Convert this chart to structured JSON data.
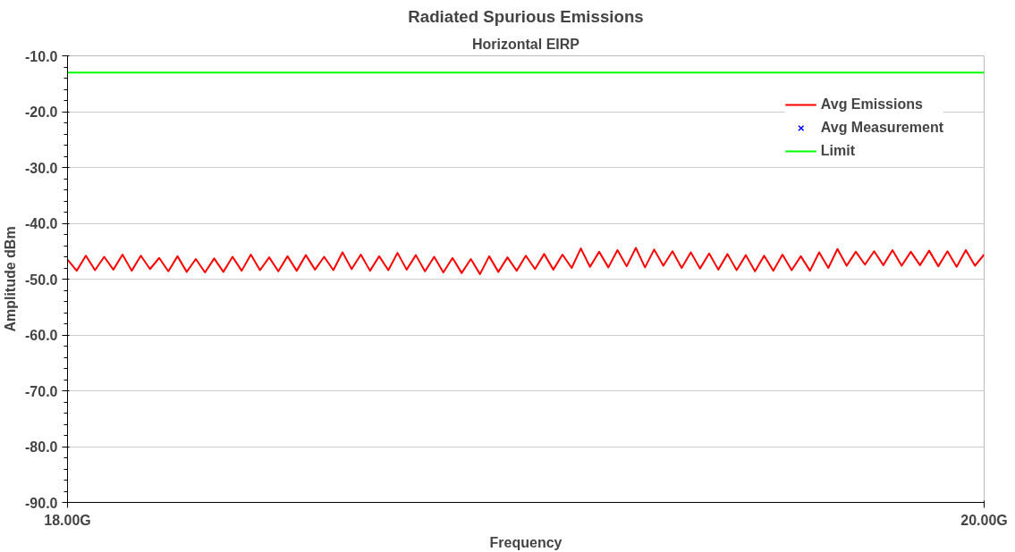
{
  "chart_data": {
    "type": "line",
    "title": "Radiated Spurious Emissions",
    "subtitle": "Horizontal EIRP",
    "xlabel": "Frequency",
    "ylabel": "Amplitude dBm",
    "xlim": [
      18,
      20
    ],
    "xticks": [
      {
        "value": 18,
        "label": "18.00G"
      },
      {
        "value": 20,
        "label": "20.00G"
      }
    ],
    "ylim": [
      -90,
      -10
    ],
    "yticks": [
      {
        "value": -90,
        "label": "-90.0"
      },
      {
        "value": -80,
        "label": "-80.0"
      },
      {
        "value": -70,
        "label": "-70.0"
      },
      {
        "value": -60,
        "label": "-60.0"
      },
      {
        "value": -50,
        "label": "-50.0"
      },
      {
        "value": -40,
        "label": "-40.0"
      },
      {
        "value": -30,
        "label": "-30.0"
      },
      {
        "value": -20,
        "label": "-20.0"
      },
      {
        "value": -10,
        "label": "-10.0"
      }
    ],
    "grid": "y",
    "legend": "top right",
    "series": [
      {
        "name": "Avg Emissions",
        "color": "#ff0000",
        "x": [
          18.0,
          18.02,
          18.04,
          18.06,
          18.08,
          18.1,
          18.12,
          18.14,
          18.16,
          18.18,
          18.2,
          18.22,
          18.24,
          18.26,
          18.28,
          18.3,
          18.32,
          18.34,
          18.36,
          18.38,
          18.4,
          18.42,
          18.44,
          18.46,
          18.48,
          18.5,
          18.52,
          18.54,
          18.56,
          18.58,
          18.6,
          18.62,
          18.64,
          18.66,
          18.68,
          18.7,
          18.72,
          18.74,
          18.76,
          18.78,
          18.8,
          18.82,
          18.84,
          18.86,
          18.88,
          18.9,
          18.92,
          18.94,
          18.96,
          18.98,
          19.0,
          19.02,
          19.04,
          19.06,
          19.08,
          19.1,
          19.12,
          19.14,
          19.16,
          19.18,
          19.2,
          19.22,
          19.24,
          19.26,
          19.28,
          19.3,
          19.32,
          19.34,
          19.36,
          19.38,
          19.4,
          19.42,
          19.44,
          19.46,
          19.48,
          19.5,
          19.52,
          19.54,
          19.56,
          19.58,
          19.6,
          19.62,
          19.64,
          19.66,
          19.68,
          19.7,
          19.72,
          19.74,
          19.76,
          19.78,
          19.8,
          19.82,
          19.84,
          19.86,
          19.88,
          19.9,
          19.92,
          19.94,
          19.96,
          19.98,
          20.0
        ],
        "values": [
          -46.5,
          -48.5,
          -45.8,
          -48.4,
          -46.0,
          -48.3,
          -45.6,
          -48.5,
          -45.8,
          -48.2,
          -46.2,
          -48.6,
          -45.9,
          -48.7,
          -46.4,
          -48.8,
          -46.3,
          -48.7,
          -46.0,
          -48.5,
          -45.6,
          -48.4,
          -46.1,
          -48.6,
          -45.9,
          -48.5,
          -45.7,
          -48.3,
          -46.0,
          -48.4,
          -45.2,
          -48.2,
          -45.6,
          -48.5,
          -45.9,
          -48.4,
          -45.3,
          -48.3,
          -45.7,
          -48.6,
          -46.0,
          -48.8,
          -46.2,
          -48.9,
          -46.4,
          -49.1,
          -45.9,
          -48.7,
          -46.1,
          -48.5,
          -45.8,
          -48.2,
          -45.5,
          -48.3,
          -45.6,
          -48.0,
          -44.5,
          -47.8,
          -45.1,
          -47.9,
          -44.8,
          -47.7,
          -44.4,
          -47.9,
          -44.7,
          -47.6,
          -45.0,
          -48.0,
          -45.2,
          -48.1,
          -45.4,
          -48.3,
          -45.5,
          -48.4,
          -45.7,
          -48.6,
          -45.8,
          -48.5,
          -45.6,
          -48.4,
          -45.9,
          -48.5,
          -45.2,
          -48.0,
          -44.6,
          -47.6,
          -45.1,
          -47.4,
          -45.0,
          -47.5,
          -44.8,
          -47.6,
          -45.1,
          -47.5,
          -44.9,
          -47.7,
          -45.0,
          -47.8,
          -44.8,
          -47.6,
          -45.6
        ]
      },
      {
        "name": "Avg Measurement",
        "type": "scatter",
        "marker": "cross",
        "color": "#0000ff"
      },
      {
        "name": "Limit",
        "color": "#00ff00",
        "x": [
          18,
          20
        ],
        "values": [
          -13,
          -13
        ]
      }
    ]
  }
}
